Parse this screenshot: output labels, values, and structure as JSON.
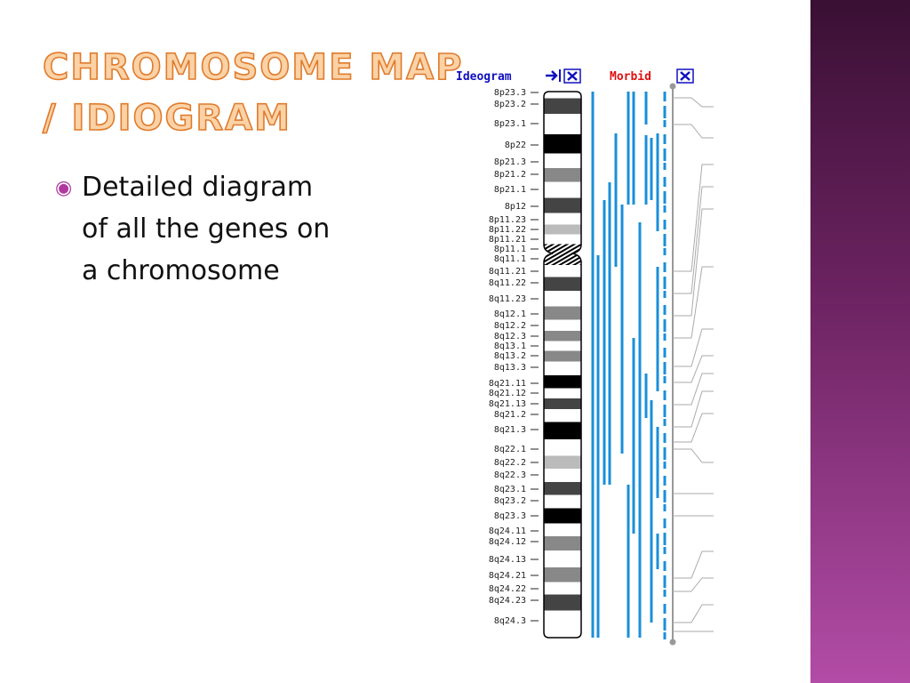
{
  "title": {
    "lines": [
      "CHROMOSOME MAP",
      "/ IDIOGRAM"
    ]
  },
  "bullet": {
    "lines": [
      "Detailed diagram",
      "of all the genes on",
      "a chromosome"
    ]
  },
  "ideogram": {
    "header": {
      "ideogram": "Ideogram",
      "morbid": "Morbid"
    },
    "bands": [
      "8p23.3",
      "8p23.2",
      "8p23.1",
      "8p22",
      "8p21.3",
      "8p21.2",
      "8p21.1",
      "8p12",
      "8p11.23",
      "8p11.22",
      "8p11.21",
      "8p11.1",
      "8q11.1",
      "8q11.21",
      "8q11.22",
      "8q11.23",
      "8q12.1",
      "8q12.2",
      "8q12.3",
      "8q13.1",
      "8q13.2",
      "8q13.3",
      "8q21.11",
      "8q21.12",
      "8q21.13",
      "8q21.2",
      "8q21.3",
      "8q22.1",
      "8q22.2",
      "8q22.3",
      "8q23.1",
      "8q23.2",
      "8q23.3",
      "8q24.11",
      "8q24.12",
      "8q24.13",
      "8q24.21",
      "8q24.22",
      "8q24.23",
      "8q24.3"
    ]
  }
}
